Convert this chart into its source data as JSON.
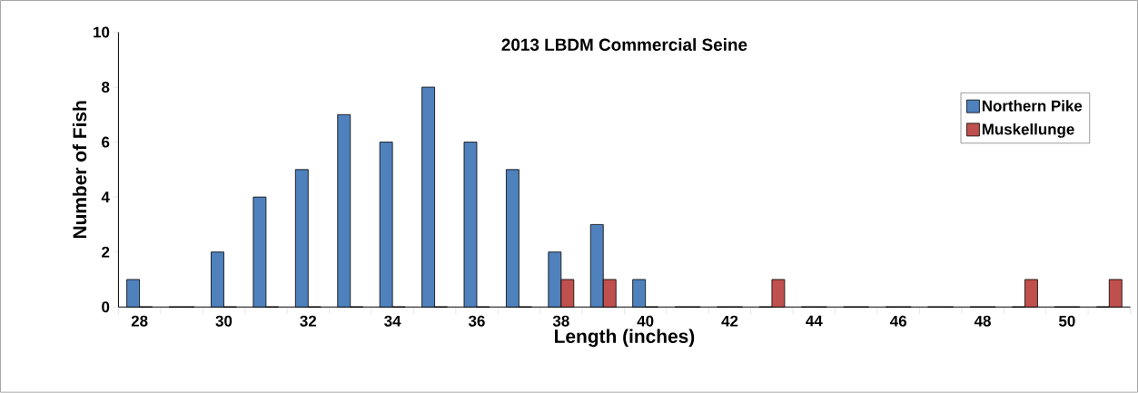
{
  "chart_data": {
    "type": "bar",
    "title": "2013 LBDM Commercial Seine",
    "xlabel": "Length (inches)",
    "ylabel": "Number of Fish",
    "categories": [
      "28",
      null,
      "30",
      null,
      "32",
      null,
      "34",
      null,
      "36",
      null,
      "38",
      null,
      "40",
      null,
      "42",
      null,
      "44",
      null,
      "46",
      null,
      "48",
      null,
      "50",
      null
    ],
    "series": [
      {
        "name": "Northern Pike",
        "color": "#4f81bd",
        "values": [
          1,
          0,
          2,
          4,
          5,
          7,
          6,
          8,
          6,
          5,
          2,
          3,
          1,
          0,
          0,
          0,
          0,
          0,
          0,
          0,
          0,
          0,
          0,
          0
        ]
      },
      {
        "name": "Muskellunge",
        "color": "#c0504d",
        "values": [
          0,
          0,
          0,
          0,
          0,
          0,
          0,
          0,
          0,
          0,
          1,
          1,
          0,
          0,
          0,
          1,
          0,
          0,
          0,
          0,
          0,
          1,
          0,
          1
        ]
      }
    ],
    "ylim": [
      0,
      10
    ],
    "yticks": [
      0,
      2,
      4,
      6,
      8,
      10
    ],
    "legend": "top right",
    "grid": false
  }
}
